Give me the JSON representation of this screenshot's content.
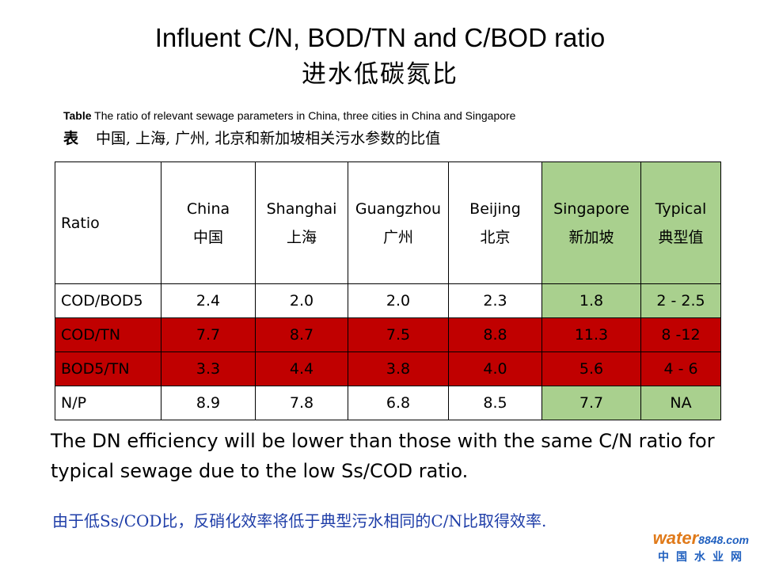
{
  "title_en": "Influent C/N, BOD/TN and C/BOD ratio",
  "title_zh": "进水低碳氮比",
  "caption": {
    "label": "Table",
    "text": " The ratio of relevant sewage parameters in China, three cities in China and Singapore",
    "zh_label": "表",
    "zh_text": "中国, 上海, 广州, 北京和新加坡相关污水参数的比值"
  },
  "table": {
    "header": {
      "ratio": "Ratio",
      "columns": [
        {
          "en": "China",
          "zh": "中国"
        },
        {
          "en": "Shanghai",
          "zh": "上海"
        },
        {
          "en": "Guangzhou",
          "zh": "广州"
        },
        {
          "en": "Beijing",
          "zh": "北京"
        },
        {
          "en": "Singapore",
          "zh": "新加坡"
        },
        {
          "en": "Typical",
          "zh": "典型值"
        }
      ]
    },
    "rows": [
      {
        "label": "COD/BOD5",
        "values": [
          "2.4",
          "2.0",
          "2.0",
          "2.3",
          "1.8",
          "2 - 2.5"
        ]
      },
      {
        "label": "COD/TN",
        "values": [
          "7.7",
          "8.7",
          "7.5",
          "8.8",
          "11.3",
          "8 -12"
        ]
      },
      {
        "label": "BOD5/TN",
        "values": [
          "3.3",
          "4.4",
          "3.8",
          "4.0",
          "5.6",
          "4 - 6"
        ]
      },
      {
        "label": "N/P",
        "values": [
          "8.9",
          "7.8",
          "6.8",
          "8.5",
          "7.7",
          "NA"
        ]
      }
    ],
    "colors": {
      "highlight_green": "#a9d08e",
      "highlight_red": "#c00000"
    }
  },
  "note_en": "The DN efficiency will be lower than those with the same C/N ratio for typical sewage due to the low Ss/COD ratio.",
  "note_zh": "由于低Ss/COD比，反硝化效率将低于典型污水相同的C/N比取得效率.",
  "watermark": {
    "brand": "water",
    "num": "8848",
    "dom": ".com",
    "sub": "中国水业网"
  }
}
